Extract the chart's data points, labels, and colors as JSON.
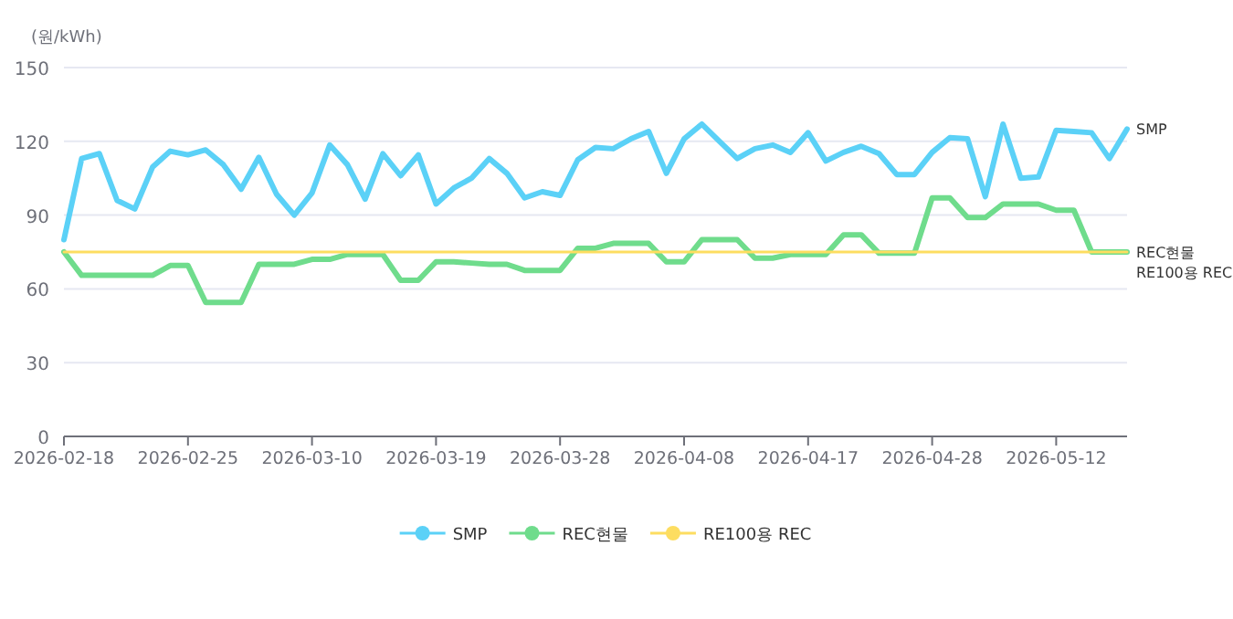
{
  "chart_data": {
    "type": "line",
    "ylabel": "(원/kWh)",
    "ylim": [
      0,
      150
    ],
    "yticks": [
      0,
      30,
      60,
      90,
      120,
      150
    ],
    "grid": "y",
    "legend": "bottom",
    "categories": [
      "2026-02-18",
      null,
      null,
      null,
      null,
      null,
      null,
      "2026-02-25",
      null,
      null,
      null,
      null,
      null,
      null,
      "2026-03-10",
      null,
      null,
      null,
      null,
      null,
      null,
      "2026-03-19",
      null,
      null,
      null,
      null,
      null,
      null,
      "2026-03-28",
      null,
      null,
      null,
      null,
      null,
      null,
      "2026-04-08",
      null,
      null,
      null,
      null,
      null,
      null,
      "2026-04-17",
      null,
      null,
      null,
      null,
      null,
      null,
      "2026-04-28",
      null,
      null,
      null,
      null,
      null,
      null,
      "2026-05-12",
      null,
      null,
      null,
      null
    ],
    "series": [
      {
        "name": "SMP",
        "color": "#5bd1f7",
        "values": [
          80,
          113,
          115,
          96,
          92.5,
          109.5,
          116,
          114.5,
          116.5,
          110.5,
          100.5,
          113.5,
          98.5,
          90,
          99,
          118.5,
          110.5,
          96.5,
          115,
          106,
          114.5,
          94.5,
          101,
          105,
          113,
          107,
          97,
          99.5,
          98,
          112.5,
          117.5,
          117,
          121,
          124,
          107,
          121,
          127,
          120,
          113,
          117,
          118.5,
          115.5,
          123.5,
          112,
          115.5,
          118,
          115,
          106.5,
          106.5,
          115.5,
          121.5,
          121,
          97.5,
          127,
          105,
          105.5,
          124.5,
          124,
          123.5,
          113,
          125
        ]
      },
      {
        "name": "REC현물",
        "color": "#6fdc8c",
        "values": [
          75,
          65.5,
          65.5,
          65.5,
          65.5,
          65.5,
          69.5,
          69.5,
          54.5,
          54.5,
          54.5,
          70,
          70,
          70,
          72,
          72,
          74,
          74,
          74,
          63.5,
          63.5,
          71,
          71,
          70.5,
          70,
          70,
          67.5,
          67.5,
          67.5,
          76.5,
          76.5,
          78.5,
          78.5,
          78.5,
          71,
          71,
          80,
          80,
          80,
          72.5,
          72.5,
          74,
          74,
          74,
          82,
          82,
          74.5,
          74.5,
          74.5,
          97,
          97,
          89,
          89,
          94.5,
          94.5,
          94.5,
          92,
          92,
          75,
          75,
          75
        ]
      },
      {
        "name": "RE100용 REC",
        "color": "#fddd60",
        "values": [
          75,
          75,
          75,
          75,
          75,
          75,
          75,
          75,
          75,
          75,
          75,
          75,
          75,
          75,
          75,
          75,
          75,
          75,
          75,
          75,
          75,
          75,
          75,
          75,
          75,
          75,
          75,
          75,
          75,
          75,
          75,
          75,
          75,
          75,
          75,
          75,
          75,
          75,
          75,
          75,
          75,
          75,
          75,
          75,
          75,
          75,
          75,
          75,
          75,
          75,
          75,
          75,
          75,
          75,
          75,
          75,
          75,
          75,
          75,
          75,
          75
        ]
      }
    ]
  }
}
